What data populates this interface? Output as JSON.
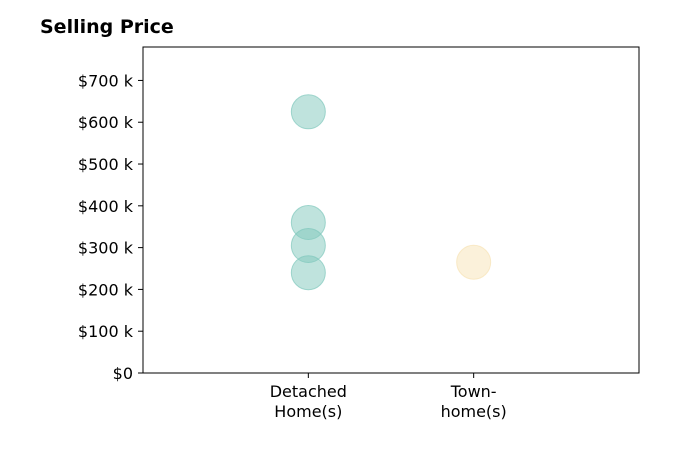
{
  "chart_data": {
    "type": "scatter",
    "title": "Selling Price",
    "categories": [
      "Detached\nHome(s)",
      "Town-\nhome(s)"
    ],
    "ylim": [
      0,
      780
    ],
    "yticks": [
      0,
      100,
      200,
      300,
      400,
      500,
      600,
      700
    ],
    "ytick_labels": [
      "$0",
      "$100 k",
      "$200 k",
      "$300 k",
      "$400 k",
      "$500 k",
      "$600 k",
      "$700 k"
    ],
    "xlim": [
      -0.5,
      2.5
    ],
    "grid": false,
    "series": [
      {
        "category": "Detached\nHome(s)",
        "x": 0.5,
        "values": [
          625,
          360,
          305,
          240
        ],
        "color": "#7fc8bc"
      },
      {
        "category": "Town-\nhome(s)",
        "x": 1.5,
        "values": [
          265
        ],
        "color": "#f7e3b5"
      }
    ]
  }
}
